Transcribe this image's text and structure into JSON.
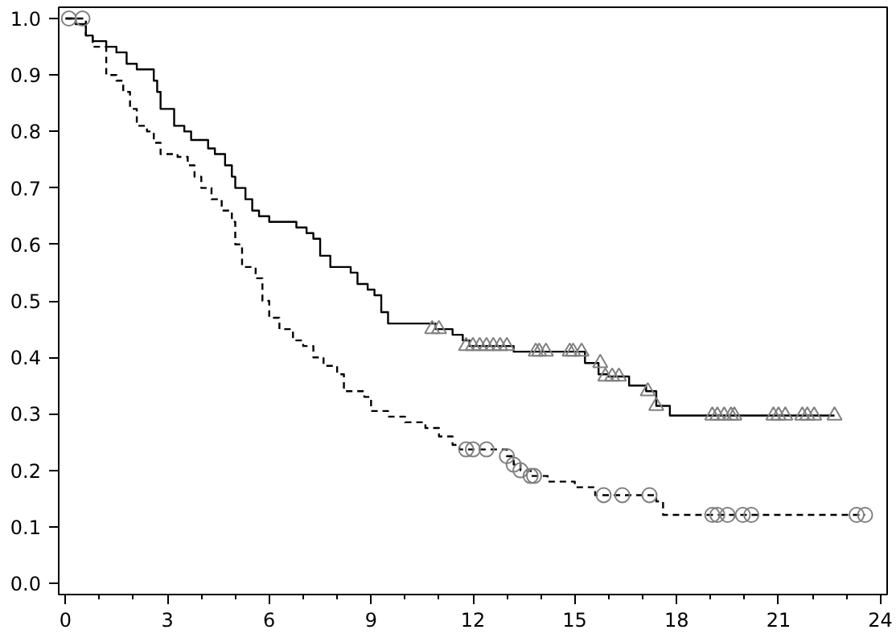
{
  "chart_data": {
    "type": "step",
    "xlim": [
      -0.2,
      24.2
    ],
    "ylim": [
      -0.02,
      1.02
    ],
    "xticks": [
      0,
      3,
      6,
      9,
      12,
      15,
      18,
      21,
      24
    ],
    "yticks": [
      {
        "value": 0,
        "label": "0.0"
      },
      {
        "value": 0.1,
        "label": "0.1"
      },
      {
        "value": 0.2,
        "label": "0.2"
      },
      {
        "value": 0.3,
        "label": "0.3"
      },
      {
        "value": 0.4,
        "label": "0.4"
      },
      {
        "value": 0.5,
        "label": "0.5"
      },
      {
        "value": 0.6,
        "label": "0.6"
      },
      {
        "value": 0.7,
        "label": "0.7"
      },
      {
        "value": 0.8,
        "label": "0.8"
      },
      {
        "value": 0.9,
        "label": "0.9"
      },
      {
        "value": 1,
        "label": "1.0"
      }
    ],
    "grid": false,
    "series": [
      {
        "color": "#000000",
        "line_style": "solid",
        "marker": "none",
        "x": [
          0,
          0.3,
          0.6,
          0.8,
          1.2,
          1.5,
          1.8,
          2.1,
          2.6,
          2.7,
          2.8,
          3.2,
          3.5,
          3.7,
          4.2,
          4.4,
          4.7,
          4.9,
          5.0,
          5.3,
          5.5,
          5.7,
          6.0,
          6.8,
          7.1,
          7.3,
          7.5,
          7.8,
          8.4,
          8.6,
          8.9,
          9.1,
          9.3,
          9.5,
          10.9,
          11.4,
          11.7,
          11.9,
          13.2,
          15.3,
          15.7,
          16.0,
          16.6,
          17.1,
          17.4,
          17.8,
          22.65
        ],
        "values": [
          1.0,
          0.99,
          0.97,
          0.96,
          0.95,
          0.94,
          0.92,
          0.91,
          0.89,
          0.87,
          0.84,
          0.81,
          0.8,
          0.785,
          0.77,
          0.76,
          0.74,
          0.72,
          0.7,
          0.68,
          0.66,
          0.65,
          0.64,
          0.63,
          0.62,
          0.61,
          0.58,
          0.56,
          0.55,
          0.53,
          0.52,
          0.51,
          0.48,
          0.46,
          0.45,
          0.44,
          0.43,
          0.42,
          0.41,
          0.39,
          0.37,
          0.366,
          0.35,
          0.34,
          0.314,
          0.297,
          0.297
        ]
      },
      {
        "color": "#000000",
        "line_style": "dashed",
        "marker": "none",
        "x": [
          0,
          0.6,
          0.8,
          1.2,
          1.5,
          1.7,
          1.9,
          2.1,
          2.4,
          2.6,
          2.8,
          3.3,
          3.6,
          3.8,
          4.0,
          4.3,
          4.6,
          4.9,
          5.0,
          5.2,
          5.6,
          5.8,
          6.0,
          6.3,
          6.7,
          7.0,
          7.3,
          7.6,
          8.0,
          8.2,
          8.8,
          9.0,
          9.5,
          10.0,
          10.6,
          11.0,
          11.4,
          11.6,
          13.0,
          13.2,
          13.4,
          13.7,
          14.2,
          15.0,
          15.6,
          17.4,
          17.6,
          23.55
        ],
        "values": [
          1.0,
          0.97,
          0.95,
          0.9,
          0.89,
          0.87,
          0.84,
          0.81,
          0.8,
          0.78,
          0.76,
          0.755,
          0.74,
          0.72,
          0.7,
          0.68,
          0.66,
          0.64,
          0.6,
          0.56,
          0.54,
          0.5,
          0.47,
          0.45,
          0.43,
          0.42,
          0.4,
          0.385,
          0.37,
          0.34,
          0.33,
          0.305,
          0.295,
          0.285,
          0.275,
          0.26,
          0.245,
          0.237,
          0.225,
          0.21,
          0.2,
          0.19,
          0.18,
          0.17,
          0.156,
          0.145,
          0.121,
          0.121
        ]
      },
      {
        "type": "scatter",
        "color": "#808080",
        "marker": "triangle",
        "x": [
          10.8,
          11.0,
          11.8,
          12.0,
          12.2,
          12.4,
          12.6,
          12.8,
          13.0,
          13.85,
          13.95,
          14.15,
          14.85,
          14.95,
          15.2,
          15.75,
          15.9,
          16.1,
          16.3,
          17.15,
          17.4,
          19.05,
          19.2,
          19.4,
          19.6,
          19.7,
          20.85,
          21.0,
          21.2,
          21.7,
          21.85,
          22.05,
          22.65
        ],
        "values": [
          0.45,
          0.45,
          0.42,
          0.42,
          0.42,
          0.42,
          0.42,
          0.42,
          0.42,
          0.41,
          0.41,
          0.41,
          0.41,
          0.41,
          0.41,
          0.39,
          0.366,
          0.366,
          0.366,
          0.34,
          0.314,
          0.297,
          0.297,
          0.297,
          0.297,
          0.297,
          0.297,
          0.297,
          0.297,
          0.297,
          0.297,
          0.297,
          0.297
        ]
      },
      {
        "type": "scatter",
        "color": "#808080",
        "marker": "circle",
        "x": [
          0.1,
          0.5,
          11.8,
          12.0,
          12.4,
          13.0,
          13.2,
          13.4,
          13.7,
          13.8,
          15.85,
          16.4,
          17.2,
          19.05,
          19.2,
          19.5,
          19.95,
          20.2,
          23.3,
          23.55
        ],
        "values": [
          1.0,
          1.0,
          0.237,
          0.237,
          0.237,
          0.225,
          0.21,
          0.2,
          0.19,
          0.19,
          0.156,
          0.156,
          0.156,
          0.121,
          0.121,
          0.121,
          0.121,
          0.121,
          0.121,
          0.121
        ]
      }
    ]
  }
}
